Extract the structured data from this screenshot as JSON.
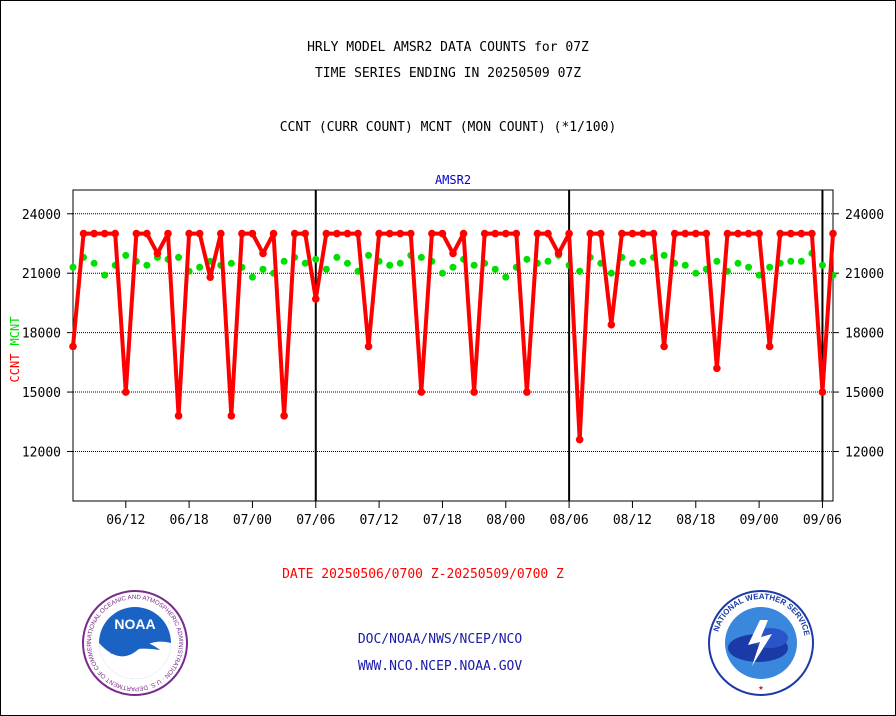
{
  "header": {
    "title_line1": "HRLY MODEL AMSR2 DATA COUNTS for 07Z",
    "title_line2": "TIME SERIES ENDING IN 20250509 07Z",
    "subtitle": "CCNT (CURR COUNT) MCNT (MON COUNT) (*1/100)"
  },
  "footer": {
    "line1": "DOC/NOAA/NWS/NCEP/NCO",
    "line2": "WWW.NCO.NCEP.NOAA.GOV"
  },
  "logos": {
    "left_text": "NOAA",
    "left_ring": "NATIONAL OCEANIC AND ATMOSPHERIC ADMINISTRATION · U.S. DEPARTMENT OF COMMERCE",
    "right_ring": "NATIONAL WEATHER SERVICE"
  },
  "colors": {
    "ccnt": "#ff0000",
    "mcnt": "#00e000",
    "label_blue": "#0000cc",
    "footer_blue": "#1a1aa8"
  },
  "chart_data": {
    "type": "line",
    "title": "AMSR2",
    "xlabel": "DATE 20250506/0700 Z-20250509/0700 Z",
    "ylabel_left": [
      "CCNT",
      "MCNT"
    ],
    "ylim": [
      9500,
      25200
    ],
    "yticks": [
      12000,
      15000,
      18000,
      21000,
      24000
    ],
    "ytick_labels": [
      "12000",
      "15000",
      "18000",
      "21000",
      "24000"
    ],
    "grid": true,
    "x_range": [
      0,
      72
    ],
    "xticks": [
      5,
      11,
      17,
      23,
      29,
      35,
      41,
      47,
      53,
      59,
      65,
      71
    ],
    "xtick_labels": [
      "06/12",
      "06/18",
      "07/00",
      "07/06",
      "07/12",
      "07/18",
      "08/00",
      "08/06",
      "08/12",
      "08/18",
      "09/00",
      "09/06"
    ],
    "day_boundaries": [
      23,
      47,
      71
    ],
    "series": [
      {
        "name": "CCNT",
        "values": [
          17300,
          23000,
          23000,
          23000,
          23000,
          15000,
          23000,
          23000,
          22000,
          23000,
          13800,
          23000,
          23000,
          20800,
          23000,
          13800,
          23000,
          23000,
          22000,
          23000,
          13800,
          23000,
          23000,
          19700,
          23000,
          23000,
          23000,
          23000,
          17300,
          23000,
          23000,
          23000,
          23000,
          15000,
          23000,
          23000,
          22000,
          23000,
          15000,
          23000,
          23000,
          23000,
          23000,
          15000,
          23000,
          23000,
          22000,
          23000,
          12600,
          23000,
          23000,
          18400,
          23000,
          23000,
          23000,
          23000,
          17300,
          23000,
          23000,
          23000,
          23000,
          16200,
          23000,
          23000,
          23000,
          23000,
          17300,
          23000,
          23000,
          23000,
          23000,
          15000,
          23000
        ]
      },
      {
        "name": "MCNT",
        "values": [
          21300,
          21800,
          21500,
          20900,
          21400,
          21900,
          21600,
          21400,
          21800,
          21700,
          21800,
          21100,
          21300,
          21600,
          21400,
          21500,
          21300,
          20800,
          21200,
          21000,
          21600,
          21800,
          21500,
          21700,
          21200,
          21800,
          21500,
          21100,
          21900,
          21600,
          21400,
          21500,
          21900,
          21800,
          21600,
          21000,
          21300,
          21700,
          21400,
          21500,
          21200,
          20800,
          21300,
          21700,
          21500,
          21600,
          21900,
          21400,
          21100,
          21800,
          21500,
          21000,
          21800,
          21500,
          21600,
          21800,
          21900,
          21500,
          21400,
          21000,
          21200,
          21600,
          21100,
          21500,
          21300,
          20900,
          21300,
          21500,
          21600,
          21600,
          22000,
          21400,
          20900
        ]
      }
    ]
  }
}
